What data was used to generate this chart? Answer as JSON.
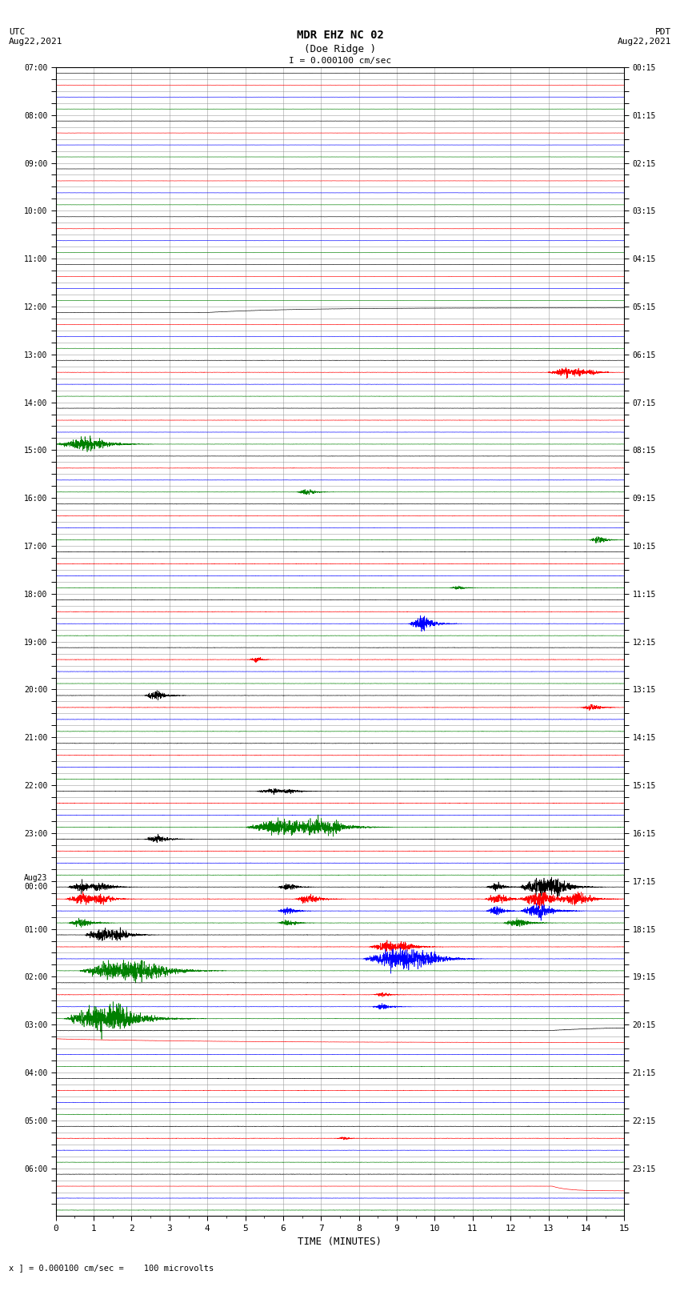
{
  "title_line1": "MDR EHZ NC 02",
  "title_line2": "(Doe Ridge )",
  "scale_label": "I = 0.000100 cm/sec",
  "utc_label": "UTC\nAug22,2021",
  "pdt_label": "PDT\nAug22,2021",
  "xlabel": "TIME (MINUTES)",
  "footer": "x ] = 0.000100 cm/sec =    100 microvolts",
  "left_labels": [
    "07:00",
    "",
    "",
    "",
    "08:00",
    "",
    "",
    "",
    "09:00",
    "",
    "",
    "",
    "10:00",
    "",
    "",
    "",
    "11:00",
    "",
    "",
    "",
    "12:00",
    "",
    "",
    "",
    "13:00",
    "",
    "",
    "",
    "14:00",
    "",
    "",
    "",
    "15:00",
    "",
    "",
    "",
    "16:00",
    "",
    "",
    "",
    "17:00",
    "",
    "",
    "",
    "18:00",
    "",
    "",
    "",
    "19:00",
    "",
    "",
    "",
    "20:00",
    "",
    "",
    "",
    "21:00",
    "",
    "",
    "",
    "22:00",
    "",
    "",
    "",
    "23:00",
    "",
    "",
    "",
    "Aug23\n00:00",
    "",
    "",
    "",
    "01:00",
    "",
    "",
    "",
    "02:00",
    "",
    "",
    "",
    "03:00",
    "",
    "",
    "",
    "04:00",
    "",
    "",
    "",
    "05:00",
    "",
    "",
    "",
    "06:00",
    "",
    "",
    ""
  ],
  "right_labels": [
    "00:15",
    "",
    "",
    "",
    "01:15",
    "",
    "",
    "",
    "02:15",
    "",
    "",
    "",
    "03:15",
    "",
    "",
    "",
    "04:15",
    "",
    "",
    "",
    "05:15",
    "",
    "",
    "",
    "06:15",
    "",
    "",
    "",
    "07:15",
    "",
    "",
    "",
    "08:15",
    "",
    "",
    "",
    "09:15",
    "",
    "",
    "",
    "10:15",
    "",
    "",
    "",
    "11:15",
    "",
    "",
    "",
    "12:15",
    "",
    "",
    "",
    "13:15",
    "",
    "",
    "",
    "14:15",
    "",
    "",
    "",
    "15:15",
    "",
    "",
    "",
    "16:15",
    "",
    "",
    "",
    "17:15",
    "",
    "",
    "",
    "18:15",
    "",
    "",
    "",
    "19:15",
    "",
    "",
    "",
    "20:15",
    "",
    "",
    "",
    "21:15",
    "",
    "",
    "",
    "22:15",
    "",
    "",
    "",
    "23:15",
    "",
    "",
    ""
  ],
  "row_colors": [
    "black",
    "red",
    "blue",
    "green"
  ],
  "bg_color": "white",
  "grid_color": "#888888",
  "xlim": [
    0,
    15
  ],
  "xticks": [
    0,
    1,
    2,
    3,
    4,
    5,
    6,
    7,
    8,
    9,
    10,
    11,
    12,
    13,
    14,
    15
  ],
  "n_hours": 24,
  "rows_per_hour": 4
}
